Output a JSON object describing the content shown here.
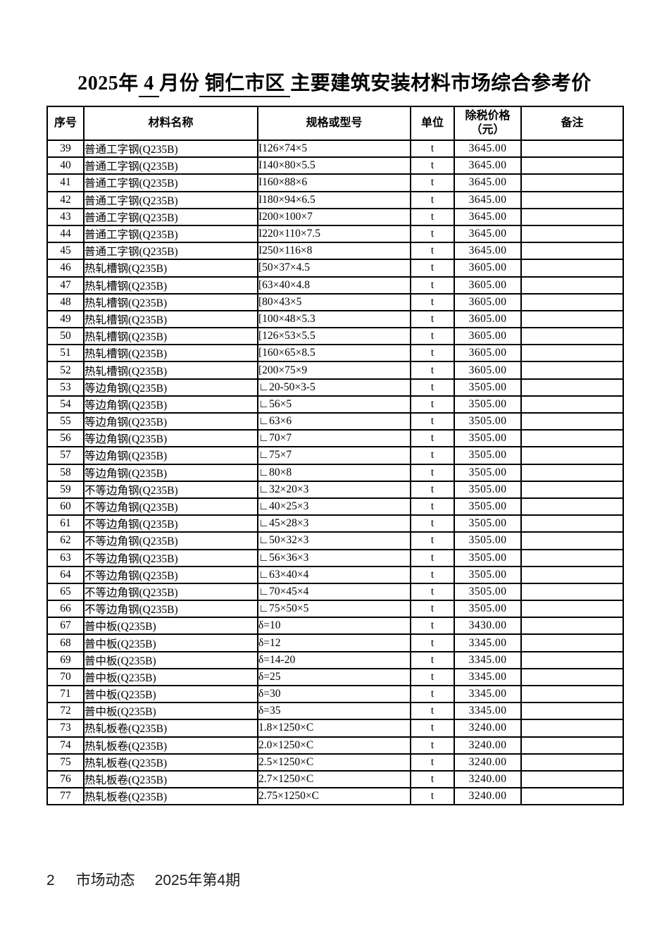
{
  "page": {
    "title": {
      "prefix": "2025年",
      "month_underlined": " 4 ",
      "mid": "月份",
      "district_underlined": " 铜仁市区 ",
      "suffix": "主要建筑安装材料市场综合参考价"
    },
    "footer": {
      "page_number": "2",
      "journal": "市场动态",
      "issue": "2025年第4期"
    }
  },
  "table": {
    "headers": {
      "no": "序号",
      "name": "材料名称",
      "spec": "规格或型号",
      "unit": "单位",
      "price_line1": "除税价格",
      "price_line2": "（元）",
      "remark": "备注"
    },
    "rows": [
      {
        "no": "39",
        "name": "普通工字钢(Q235B)",
        "spec": "I126×74×5",
        "unit": "t",
        "price": "3645.00",
        "remark": ""
      },
      {
        "no": "40",
        "name": "普通工字钢(Q235B)",
        "spec": "I140×80×5.5",
        "unit": "t",
        "price": "3645.00",
        "remark": ""
      },
      {
        "no": "41",
        "name": "普通工字钢(Q235B)",
        "spec": "I160×88×6",
        "unit": "t",
        "price": "3645.00",
        "remark": ""
      },
      {
        "no": "42",
        "name": "普通工字钢(Q235B)",
        "spec": "I180×94×6.5",
        "unit": "t",
        "price": "3645.00",
        "remark": ""
      },
      {
        "no": "43",
        "name": "普通工字钢(Q235B)",
        "spec": "I200×100×7",
        "unit": "t",
        "price": "3645.00",
        "remark": ""
      },
      {
        "no": "44",
        "name": "普通工字钢(Q235B)",
        "spec": "I220×110×7.5",
        "unit": "t",
        "price": "3645.00",
        "remark": ""
      },
      {
        "no": "45",
        "name": "普通工字钢(Q235B)",
        "spec": "I250×116×8",
        "unit": "t",
        "price": "3645.00",
        "remark": ""
      },
      {
        "no": "46",
        "name": "热轧槽钢(Q235B)",
        "spec": "[50×37×4.5",
        "unit": "t",
        "price": "3605.00",
        "remark": ""
      },
      {
        "no": "47",
        "name": "热轧槽钢(Q235B)",
        "spec": "[63×40×4.8",
        "unit": "t",
        "price": "3605.00",
        "remark": ""
      },
      {
        "no": "48",
        "name": "热轧槽钢(Q235B)",
        "spec": "[80×43×5",
        "unit": "t",
        "price": "3605.00",
        "remark": ""
      },
      {
        "no": "49",
        "name": "热轧槽钢(Q235B)",
        "spec": "[100×48×5.3",
        "unit": "t",
        "price": "3605.00",
        "remark": ""
      },
      {
        "no": "50",
        "name": "热轧槽钢(Q235B)",
        "spec": "[126×53×5.5",
        "unit": "t",
        "price": "3605.00",
        "remark": ""
      },
      {
        "no": "51",
        "name": "热轧槽钢(Q235B)",
        "spec": "[160×65×8.5",
        "unit": "t",
        "price": "3605.00",
        "remark": ""
      },
      {
        "no": "52",
        "name": "热轧槽钢(Q235B)",
        "spec": "[200×75×9",
        "unit": "t",
        "price": "3605.00",
        "remark": ""
      },
      {
        "no": "53",
        "name": "等边角钢(Q235B)",
        "spec": "∟20-50×3-5",
        "unit": "t",
        "price": "3505.00",
        "remark": ""
      },
      {
        "no": "54",
        "name": "等边角钢(Q235B)",
        "spec": "∟56×5",
        "unit": "t",
        "price": "3505.00",
        "remark": ""
      },
      {
        "no": "55",
        "name": "等边角钢(Q235B)",
        "spec": "∟63×6",
        "unit": "t",
        "price": "3505.00",
        "remark": ""
      },
      {
        "no": "56",
        "name": "等边角钢(Q235B)",
        "spec": "∟70×7",
        "unit": "t",
        "price": "3505.00",
        "remark": ""
      },
      {
        "no": "57",
        "name": "等边角钢(Q235B)",
        "spec": "∟75×7",
        "unit": "t",
        "price": "3505.00",
        "remark": ""
      },
      {
        "no": "58",
        "name": "等边角钢(Q235B)",
        "spec": "∟80×8",
        "unit": "t",
        "price": "3505.00",
        "remark": ""
      },
      {
        "no": "59",
        "name": "不等边角钢(Q235B)",
        "spec": "∟32×20×3",
        "unit": "t",
        "price": "3505.00",
        "remark": ""
      },
      {
        "no": "60",
        "name": "不等边角钢(Q235B)",
        "spec": "∟40×25×3",
        "unit": "t",
        "price": "3505.00",
        "remark": ""
      },
      {
        "no": "61",
        "name": "不等边角钢(Q235B)",
        "spec": "∟45×28×3",
        "unit": "t",
        "price": "3505.00",
        "remark": ""
      },
      {
        "no": "62",
        "name": "不等边角钢(Q235B)",
        "spec": "∟50×32×3",
        "unit": "t",
        "price": "3505.00",
        "remark": ""
      },
      {
        "no": "63",
        "name": "不等边角钢(Q235B)",
        "spec": "∟56×36×3",
        "unit": "t",
        "price": "3505.00",
        "remark": ""
      },
      {
        "no": "64",
        "name": "不等边角钢(Q235B)",
        "spec": "∟63×40×4",
        "unit": "t",
        "price": "3505.00",
        "remark": ""
      },
      {
        "no": "65",
        "name": "不等边角钢(Q235B)",
        "spec": "∟70×45×4",
        "unit": "t",
        "price": "3505.00",
        "remark": ""
      },
      {
        "no": "66",
        "name": "不等边角钢(Q235B)",
        "spec": "∟75×50×5",
        "unit": "t",
        "price": "3505.00",
        "remark": ""
      },
      {
        "no": "67",
        "name": "普中板(Q235B)",
        "spec": "δ=10",
        "unit": "t",
        "price": "3430.00",
        "remark": ""
      },
      {
        "no": "68",
        "name": "普中板(Q235B)",
        "spec": "δ=12",
        "unit": "t",
        "price": "3345.00",
        "remark": ""
      },
      {
        "no": "69",
        "name": "普中板(Q235B)",
        "spec": "δ=14-20",
        "unit": "t",
        "price": "3345.00",
        "remark": ""
      },
      {
        "no": "70",
        "name": "普中板(Q235B)",
        "spec": "δ=25",
        "unit": "t",
        "price": "3345.00",
        "remark": ""
      },
      {
        "no": "71",
        "name": "普中板(Q235B)",
        "spec": "δ=30",
        "unit": "t",
        "price": "3345.00",
        "remark": ""
      },
      {
        "no": "72",
        "name": "普中板(Q235B)",
        "spec": "δ=35",
        "unit": "t",
        "price": "3345.00",
        "remark": ""
      },
      {
        "no": "73",
        "name": "热轧板卷(Q235B)",
        "spec": "1.8×1250×C",
        "unit": "t",
        "price": "3240.00",
        "remark": ""
      },
      {
        "no": "74",
        "name": "热轧板卷(Q235B)",
        "spec": "2.0×1250×C",
        "unit": "t",
        "price": "3240.00",
        "remark": ""
      },
      {
        "no": "75",
        "name": "热轧板卷(Q235B)",
        "spec": "2.5×1250×C",
        "unit": "t",
        "price": "3240.00",
        "remark": ""
      },
      {
        "no": "76",
        "name": "热轧板卷(Q235B)",
        "spec": "2.7×1250×C",
        "unit": "t",
        "price": "3240.00",
        "remark": ""
      },
      {
        "no": "77",
        "name": "热轧板卷(Q235B)",
        "spec": "2.75×1250×C",
        "unit": "t",
        "price": "3240.00",
        "remark": ""
      }
    ]
  }
}
